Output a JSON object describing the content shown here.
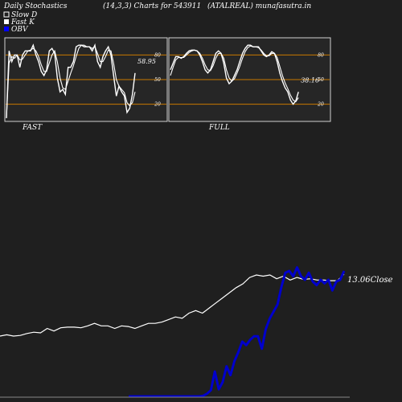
{
  "header": {
    "title": "Daily Stochastics",
    "params": "(14,3,3) Charts for 543911",
    "symbol": "(ATALREAL) munafasutra.in"
  },
  "legend": {
    "slow_d": "Slow  D",
    "fast_k": "Fast K",
    "obv": "OBV"
  },
  "colors": {
    "background": "#1f1f1f",
    "panel": "#262626",
    "level_line": "#c87800",
    "stoch_line": "#ffffff",
    "obv_line": "#0000cc",
    "obv_legend": "#0000ff",
    "price_line": "#ffffff"
  },
  "chart_data": [
    {
      "type": "line",
      "panel_label": "FAST",
      "ylim": [
        0,
        100
      ],
      "levels": [
        20,
        50,
        80
      ],
      "level_labels": [
        "20",
        "50",
        "80"
      ],
      "last_value_label": "58.95",
      "series": [
        {
          "name": "Fast K",
          "values": [
            3,
            85,
            72,
            80,
            80,
            65,
            80,
            85,
            85,
            85,
            92,
            80,
            72,
            60,
            55,
            62,
            85,
            88,
            82,
            52,
            35,
            38,
            32,
            65,
            65,
            72,
            90,
            92,
            92,
            90,
            90,
            90,
            85,
            92,
            72,
            65,
            78,
            85,
            90,
            80,
            55,
            30,
            42,
            35,
            30,
            10,
            15,
            32,
            58
          ]
        },
        {
          "name": "Slow D",
          "values": [
            3,
            70,
            78,
            76,
            80,
            74,
            75,
            80,
            85,
            86,
            88,
            85,
            78,
            68,
            60,
            60,
            70,
            80,
            85,
            72,
            52,
            40,
            38,
            48,
            58,
            67,
            78,
            88,
            92,
            92,
            90,
            90,
            88,
            90,
            82,
            72,
            72,
            78,
            86,
            85,
            70,
            50,
            42,
            38,
            34,
            22,
            18,
            22,
            35
          ]
        }
      ]
    },
    {
      "type": "line",
      "panel_label": "FULL",
      "ylim": [
        0,
        100
      ],
      "levels": [
        20,
        50,
        80
      ],
      "level_labels": [
        "20",
        "50",
        "80"
      ],
      "last_value_label": "38.16",
      "series": [
        {
          "name": "Fast K",
          "values": [
            62,
            70,
            78,
            78,
            76,
            78,
            82,
            85,
            86,
            86,
            85,
            80,
            72,
            62,
            58,
            62,
            72,
            82,
            85,
            82,
            70,
            52,
            45,
            48,
            55,
            62,
            72,
            82,
            88,
            92,
            92,
            90,
            90,
            90,
            85,
            80,
            78,
            80,
            84,
            82,
            72,
            58,
            48,
            40,
            35,
            25,
            20,
            24,
            35
          ]
        },
        {
          "name": "Slow D",
          "values": [
            55,
            65,
            74,
            77,
            77,
            77,
            80,
            83,
            85,
            86,
            85,
            82,
            76,
            68,
            62,
            61,
            67,
            76,
            82,
            82,
            76,
            62,
            52,
            48,
            51,
            58,
            66,
            76,
            84,
            89,
            91,
            90,
            90,
            89,
            86,
            82,
            79,
            79,
            82,
            82,
            77,
            66,
            55,
            46,
            39,
            31,
            25,
            23,
            28
          ]
        }
      ]
    },
    {
      "type": "line",
      "close_label": "13.06",
      "close_suffix": "Close",
      "series": [
        {
          "name": "Close",
          "values": [
            8.2,
            8.3,
            8.2,
            8.25,
            8.4,
            8.5,
            8.45,
            8.8,
            8.6,
            8.85,
            8.9,
            8.9,
            8.85,
            9.0,
            9.2,
            9.0,
            9.0,
            8.8,
            9.0,
            8.95,
            8.8,
            9.0,
            9.2,
            9.2,
            9.3,
            9.5,
            9.7,
            9.6,
            10.0,
            10.2,
            10.0,
            10.4,
            10.8,
            11.2,
            11.6,
            12.0,
            12.3,
            12.8,
            13.0,
            12.9,
            13.0,
            12.7,
            12.9,
            12.6,
            12.8,
            12.65,
            12.7,
            12.6,
            12.6,
            12.55,
            12.55,
            13.06
          ]
        },
        {
          "name": "OBV",
          "values": [
            0,
            0,
            0,
            0,
            0,
            0,
            0,
            0,
            0,
            0,
            0,
            0,
            0,
            0,
            0,
            0,
            0,
            0,
            0,
            0.3,
            1.5,
            3.5,
            14,
            4,
            8,
            17,
            12,
            20,
            25,
            31,
            29,
            32,
            34,
            34,
            27,
            38,
            44,
            48,
            52,
            62,
            70,
            71,
            68,
            73,
            68,
            66,
            70,
            65,
            63,
            66,
            64,
            66,
            60,
            65,
            66,
            71
          ]
        }
      ]
    }
  ]
}
